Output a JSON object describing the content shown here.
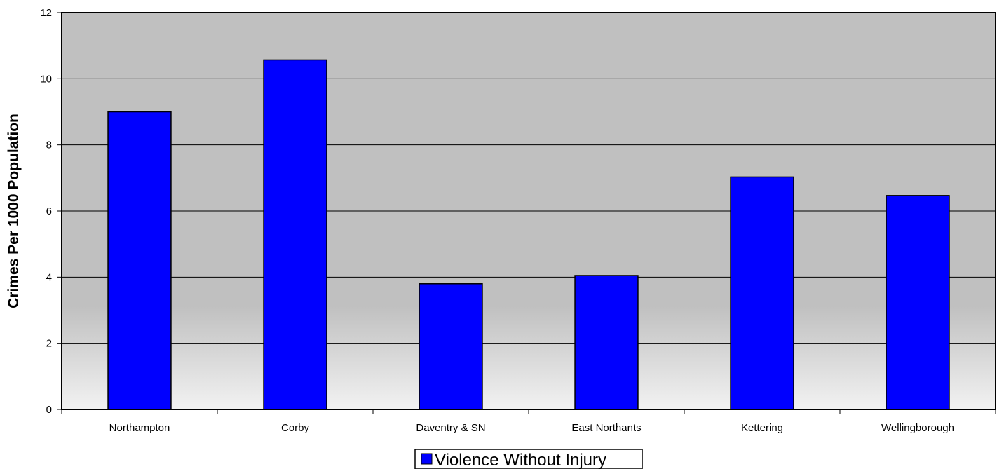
{
  "chart_data": {
    "type": "bar",
    "title": "",
    "xlabel": "",
    "ylabel": "Crimes Per 1000 Population",
    "ylim": [
      0,
      12
    ],
    "yticks": [
      0,
      2,
      4,
      6,
      8,
      10,
      12
    ],
    "grid": true,
    "legend_position": "bottom-center",
    "categories": [
      "Northampton",
      "Corby",
      "Daventry & SN",
      "East Northants",
      "Kettering",
      "Wellingborough"
    ],
    "series": [
      {
        "name": "Violence Without Injury",
        "color": "#0000ff",
        "values": [
          9.0,
          10.57,
          3.8,
          4.05,
          7.03,
          6.47
        ]
      }
    ],
    "plot_background": "#c0c0c0"
  }
}
